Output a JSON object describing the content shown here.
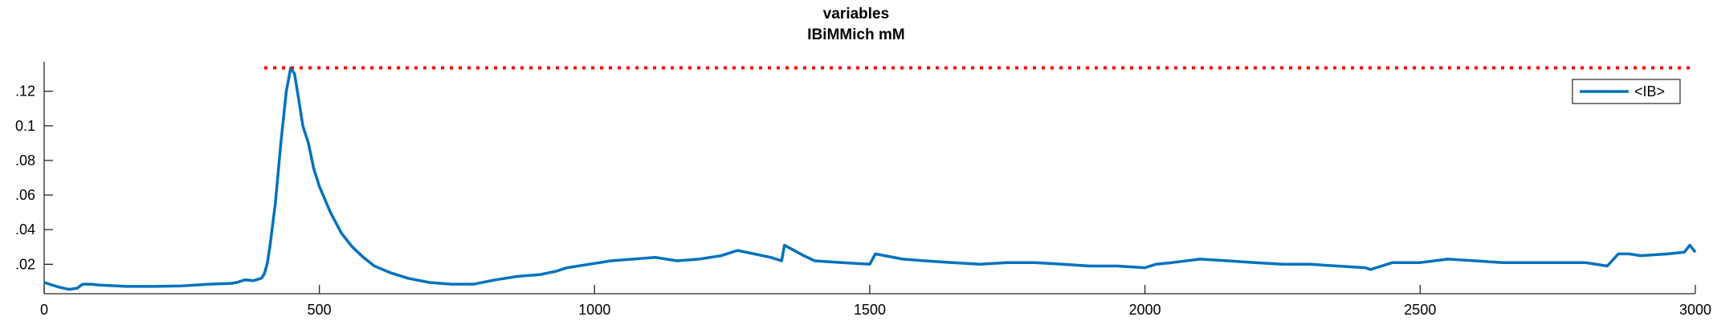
{
  "chart_data": {
    "type": "line",
    "title_lines": [
      "variables",
      "IBiMMich mM"
    ],
    "xlabel": "",
    "ylabel": "",
    "xlim": [
      0,
      3000
    ],
    "ylim": [
      0.003,
      0.137
    ],
    "xticks": [
      0,
      500,
      1000,
      1500,
      2000,
      2500,
      3000
    ],
    "xtick_labels": [
      "0",
      "500",
      "1000",
      "1500",
      "2000",
      "2500",
      "3000"
    ],
    "yticks": [
      0.02,
      0.04,
      0.06,
      0.08,
      0.1,
      0.12
    ],
    "ytick_labels": [
      ".02",
      ".04",
      ".06",
      ".08",
      "0.1",
      ".12"
    ],
    "grid": false,
    "legend_placement": "top-right",
    "series": [
      {
        "name": "<IB>",
        "color": "#0072BD",
        "style": "solid",
        "x": [
          0,
          25,
          45,
          60,
          70,
          85,
          100,
          150,
          200,
          250,
          300,
          340,
          350,
          365,
          380,
          395,
          400,
          405,
          410,
          420,
          430,
          440,
          448,
          455,
          460,
          470,
          480,
          490,
          500,
          520,
          540,
          560,
          580,
          600,
          630,
          660,
          700,
          740,
          780,
          820,
          860,
          900,
          930,
          950,
          990,
          1030,
          1070,
          1110,
          1150,
          1190,
          1230,
          1260,
          1290,
          1320,
          1340,
          1345,
          1380,
          1400,
          1450,
          1500,
          1510,
          1560,
          1600,
          1650,
          1700,
          1750,
          1800,
          1850,
          1900,
          1950,
          2000,
          2020,
          2050,
          2100,
          2150,
          2200,
          2250,
          2300,
          2350,
          2400,
          2410,
          2450,
          2500,
          2550,
          2600,
          2650,
          2700,
          2750,
          2800,
          2840,
          2860,
          2880,
          2900,
          2950,
          2980,
          2990,
          3000
        ],
        "y": [
          0.0095,
          0.007,
          0.0055,
          0.0062,
          0.0085,
          0.0085,
          0.008,
          0.0072,
          0.0072,
          0.0075,
          0.0085,
          0.009,
          0.0095,
          0.011,
          0.0105,
          0.012,
          0.0145,
          0.02,
          0.03,
          0.055,
          0.09,
          0.12,
          0.1335,
          0.13,
          0.12,
          0.1,
          0.09,
          0.075,
          0.065,
          0.05,
          0.038,
          0.03,
          0.024,
          0.019,
          0.015,
          0.012,
          0.0095,
          0.0085,
          0.0085,
          0.011,
          0.013,
          0.014,
          0.016,
          0.018,
          0.02,
          0.022,
          0.023,
          0.024,
          0.022,
          0.023,
          0.025,
          0.028,
          0.026,
          0.024,
          0.022,
          0.031,
          0.025,
          0.022,
          0.021,
          0.02,
          0.026,
          0.023,
          0.022,
          0.021,
          0.02,
          0.021,
          0.021,
          0.02,
          0.019,
          0.019,
          0.018,
          0.02,
          0.021,
          0.023,
          0.022,
          0.021,
          0.02,
          0.02,
          0.019,
          0.018,
          0.017,
          0.021,
          0.021,
          0.023,
          0.022,
          0.021,
          0.021,
          0.021,
          0.021,
          0.019,
          0.026,
          0.026,
          0.025,
          0.026,
          0.027,
          0.031,
          0.027
        ]
      },
      {
        "name": "",
        "color": "#FF0000",
        "style": "dotted",
        "x": [
          400,
          3000
        ],
        "y": [
          0.1335,
          0.1335
        ]
      }
    ]
  }
}
